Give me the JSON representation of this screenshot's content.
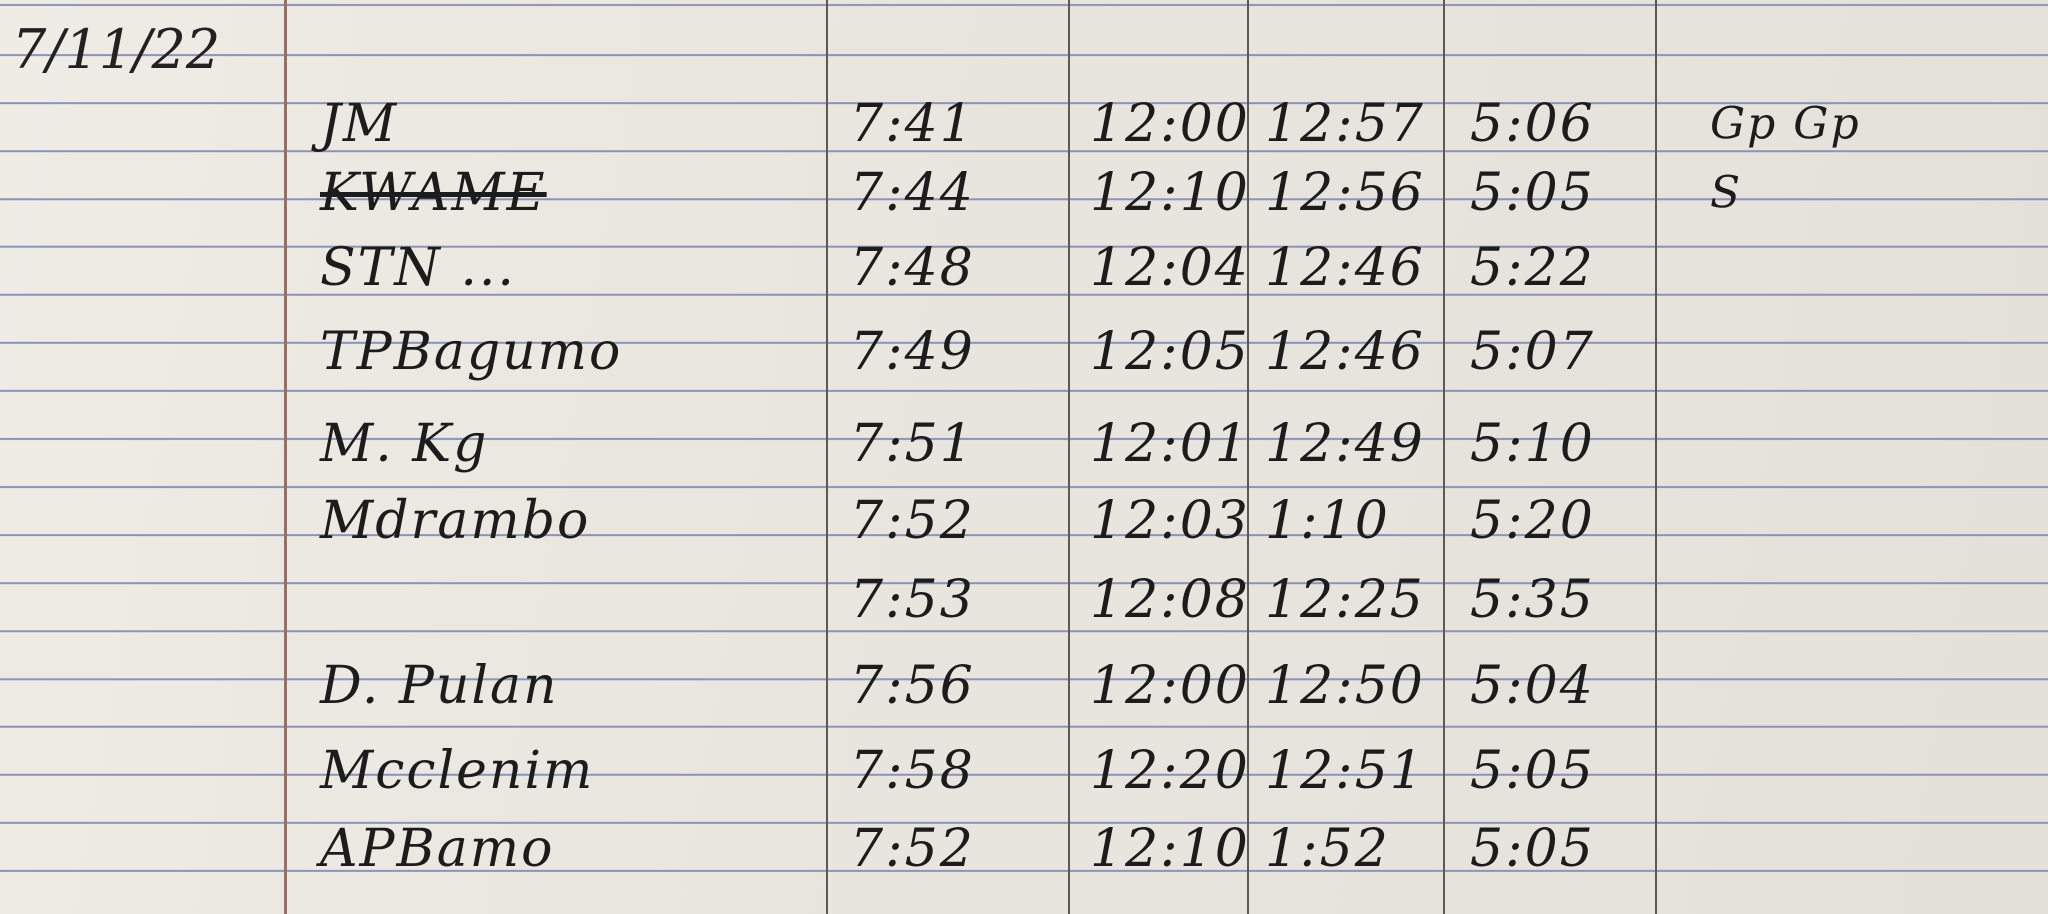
{
  "date": "7/11/22",
  "rows": [
    {
      "name": "JM",
      "time_in": "7:41",
      "lunch_out": "12:00",
      "lunch_in": "12:57",
      "time_out": "5:06",
      "signature": "Gp Gp"
    },
    {
      "name": "KWAME",
      "name_struck": true,
      "time_in": "7:44",
      "lunch_out": "12:10",
      "lunch_in": "12:56",
      "time_out": "5:05",
      "signature": "S"
    },
    {
      "name": "STN ...",
      "time_in": "7:48",
      "lunch_out": "12:04",
      "lunch_in": "12:46",
      "time_out": "5:22",
      "signature": ""
    },
    {
      "name": "TPBagumo",
      "time_in": "7:49",
      "lunch_out": "12:05",
      "lunch_in": "12:46",
      "time_out": "5:07",
      "signature": ""
    },
    {
      "name": "M. Kg",
      "time_in": "7:51",
      "lunch_out": "12:01",
      "lunch_in": "12:49",
      "time_out": "5:10",
      "signature": ""
    },
    {
      "name": "Mdrambo",
      "time_in": "7:52",
      "lunch_out": "12:03",
      "lunch_in": "1:10",
      "time_out": "5:20",
      "signature": ""
    },
    {
      "name": "",
      "time_in": "7:53",
      "lunch_out": "12:08",
      "lunch_in": "12:25",
      "time_out": "5:35",
      "signature": ""
    },
    {
      "name": "D. Pulan",
      "time_in": "7:56",
      "lunch_out": "12:00",
      "lunch_in": "12:50",
      "time_out": "5:04",
      "signature": ""
    },
    {
      "name": "Mcclenim",
      "time_in": "7:58",
      "lunch_out": "12:20",
      "lunch_in": "12:51",
      "time_out": "5:05",
      "signature": ""
    },
    {
      "name": "APBamo",
      "time_in": "7:52",
      "lunch_out": "12:10",
      "lunch_in": "1:52",
      "time_out": "5:05",
      "signature": ""
    }
  ]
}
